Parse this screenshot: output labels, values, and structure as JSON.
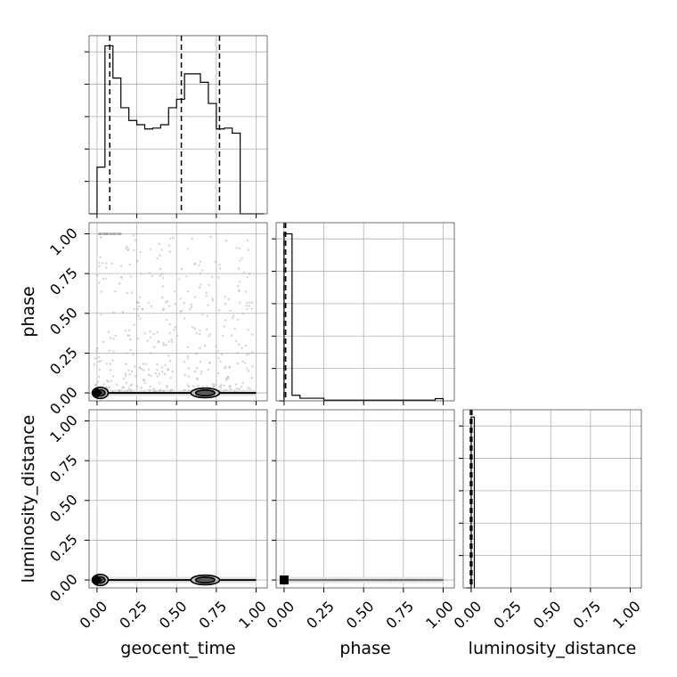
{
  "chart_data": {
    "type": "corner",
    "parameters": [
      "geocent_time",
      "phase",
      "luminosity_distance"
    ],
    "axis_labels": {
      "x": [
        "geocent_time",
        "phase",
        "luminosity_distance"
      ],
      "y": [
        "phase",
        "luminosity_distance"
      ]
    },
    "tick_values": [
      0.0,
      0.25,
      0.5,
      0.75,
      1.0
    ],
    "tick_labels": [
      "0.00",
      "0.25",
      "0.50",
      "0.75",
      "1.00"
    ],
    "xlim": [
      -0.05,
      1.07
    ],
    "ylim": [
      -0.05,
      1.07
    ],
    "grid": true,
    "colors": {
      "line": "#000000",
      "grid": "#b0b0b0",
      "frame": "#4d4d4d",
      "points": "#9e9e9e"
    },
    "diagonal": [
      {
        "parameter": "geocent_time",
        "type": "histogram",
        "bin_edges": [
          -0.05,
          0.0,
          0.05,
          0.1,
          0.15,
          0.2,
          0.25,
          0.3,
          0.35,
          0.4,
          0.45,
          0.5,
          0.55,
          0.6,
          0.65,
          0.7,
          0.75,
          0.8,
          0.85,
          0.9,
          0.95,
          1.0,
          1.05
        ],
        "counts": [
          0,
          5.5,
          19.8,
          16.0,
          12.5,
          11.0,
          10.5,
          10.0,
          10.1,
          10.5,
          12.5,
          13.5,
          16.5,
          16.5,
          15.5,
          13.0,
          10.0,
          10.1,
          9.5,
          0,
          0,
          0
        ],
        "ymax": 21,
        "quantiles": [
          0.08,
          0.53,
          0.77
        ]
      },
      {
        "parameter": "phase",
        "type": "histogram",
        "bin_edges": [
          -0.03,
          0.0,
          0.05,
          0.1,
          0.25,
          0.95,
          1.0
        ],
        "counts": [
          0,
          45,
          1.5,
          0.7,
          0.2,
          0.6
        ],
        "ymax": 48,
        "quantiles": [
          0.0,
          0.01
        ]
      },
      {
        "parameter": "luminosity_distance",
        "type": "histogram",
        "bin_edges": [
          -0.03,
          0.0,
          0.02
        ],
        "counts": [
          0,
          47
        ],
        "ymax": 49,
        "quantiles": [
          -0.005,
          0.005
        ]
      }
    ],
    "scatter": {
      "geocent_time_vs_phase": {
        "dense_band": {
          "y": 0.0,
          "x_range": [
            -0.02,
            1.0
          ]
        },
        "top_cluster": {
          "y": 1.0,
          "x_range": [
            0.0,
            0.15
          ]
        },
        "contours": [
          {
            "level": "outer",
            "centers": [
              0.02,
              0.68
            ],
            "half_widths": [
              0.05,
              0.09
            ],
            "half_heights": [
              0.035,
              0.03
            ]
          },
          {
            "level": "inner",
            "centers": [
              0.02,
              0.68
            ],
            "half_widths": [
              0.03,
              0.06
            ],
            "half_heights": [
              0.02,
              0.018
            ]
          }
        ]
      },
      "geocent_time_vs_luminosity_distance": {
        "dense_band": {
          "y": 0.0,
          "x_range": [
            -0.02,
            1.0
          ]
        },
        "contours": [
          {
            "level": "outer",
            "centers": [
              0.02,
              0.68
            ],
            "half_widths": [
              0.05,
              0.09
            ],
            "half_heights": [
              0.035,
              0.03
            ]
          },
          {
            "level": "inner",
            "centers": [
              0.02,
              0.68
            ],
            "half_widths": [
              0.03,
              0.06
            ],
            "half_heights": [
              0.02,
              0.018
            ]
          }
        ]
      },
      "phase_vs_luminosity_distance": {
        "dense_band": {
          "y": 0.0,
          "x_range": [
            0.0,
            1.0
          ]
        },
        "marker_at": [
          0.0,
          0.0
        ]
      }
    }
  }
}
